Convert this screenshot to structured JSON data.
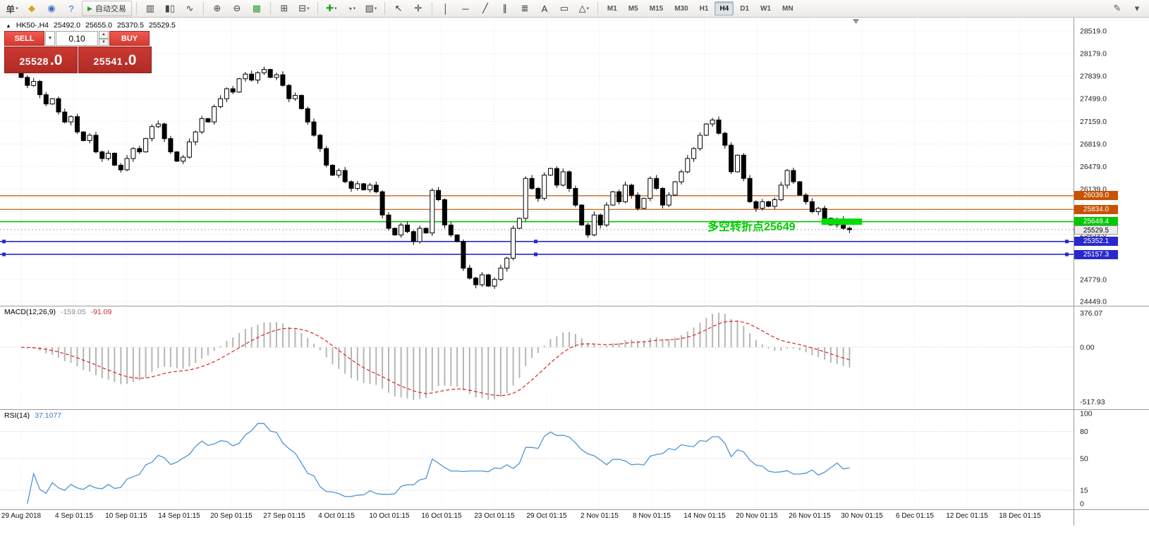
{
  "toolbar": {
    "items": [
      {
        "type": "icon",
        "name": "new-order-button",
        "glyph": "单",
        "color": "#111",
        "dropdown": true
      },
      {
        "type": "icon",
        "name": "chart-profiles-icon",
        "glyph": "◆",
        "color": "#d9a41e"
      },
      {
        "type": "icon",
        "name": "market-watch-icon",
        "glyph": "◉",
        "color": "#3b6fc4"
      },
      {
        "type": "icon",
        "name": "help-guide-icon",
        "glyph": "?",
        "color": "#3b6fc4"
      },
      {
        "type": "button",
        "name": "auto-trading-button",
        "glyph": "▶",
        "glyph_color": "#1fa51f",
        "label": "自动交易"
      },
      {
        "type": "sep"
      },
      {
        "type": "icon",
        "name": "bar-chart-type-icon",
        "glyph": "▥",
        "color": "#444"
      },
      {
        "type": "icon",
        "name": "candlestick-type-icon",
        "glyph": "▮▯",
        "color": "#444"
      },
      {
        "type": "icon",
        "name": "line-chart-type-icon",
        "glyph": "∿",
        "color": "#444"
      },
      {
        "type": "sep"
      },
      {
        "type": "icon",
        "name": "zoom-in-icon",
        "glyph": "⊕",
        "color": "#444"
      },
      {
        "type": "icon",
        "name": "zoom-out-icon",
        "glyph": "⊖",
        "color": "#444"
      },
      {
        "type": "icon",
        "name": "market-depth-icon",
        "glyph": "▦",
        "color": "#2f9e2f"
      },
      {
        "type": "sep"
      },
      {
        "type": "icon",
        "name": "tile-windows-icon",
        "glyph": "⊞",
        "color": "#444"
      },
      {
        "type": "icon",
        "name": "new-chart-icon",
        "glyph": "⊟",
        "color": "#444",
        "dropdown": true
      },
      {
        "type": "sep"
      },
      {
        "type": "icon",
        "name": "indicators-add-icon",
        "glyph": "✚",
        "color": "#1fa51f",
        "dropdown": true
      },
      {
        "type": "icon",
        "name": "periods-clock-icon",
        "glyph": "◔",
        "color": "#444",
        "dropdown": true
      },
      {
        "type": "icon",
        "name": "templates-icon",
        "glyph": "▧",
        "color": "#444",
        "dropdown": true
      },
      {
        "type": "sep"
      },
      {
        "type": "icon",
        "name": "cursor-icon",
        "glyph": "↖",
        "color": "#333"
      },
      {
        "type": "icon",
        "name": "crosshair-icon",
        "glyph": "✛",
        "color": "#333"
      },
      {
        "type": "sep"
      },
      {
        "type": "icon",
        "name": "vertical-line-icon",
        "glyph": "│",
        "color": "#333"
      },
      {
        "type": "icon",
        "name": "horizontal-line-icon",
        "glyph": "─",
        "color": "#333"
      },
      {
        "type": "icon",
        "name": "trendline-icon",
        "glyph": "╱",
        "color": "#333"
      },
      {
        "type": "icon",
        "name": "channel-icon",
        "glyph": "∥",
        "color": "#333"
      },
      {
        "type": "icon",
        "name": "fibonacci-icon",
        "glyph": "≣",
        "color": "#333"
      },
      {
        "type": "icon",
        "name": "text-icon",
        "glyph": "A",
        "color": "#333"
      },
      {
        "type": "icon",
        "name": "label-icon",
        "glyph": "▭",
        "color": "#333"
      },
      {
        "type": "icon",
        "name": "shapes-icon",
        "glyph": "△",
        "color": "#333",
        "dropdown": true
      },
      {
        "type": "sep"
      }
    ],
    "timeframes": [
      "M1",
      "M5",
      "M15",
      "M30",
      "H1",
      "H4",
      "D1",
      "W1",
      "MN"
    ],
    "active_timeframe": "H4",
    "right_icons": [
      {
        "name": "edit-icon",
        "glyph": "✎",
        "color": "#555"
      },
      {
        "name": "chevron-down-icon",
        "glyph": "▾",
        "color": "#555"
      }
    ]
  },
  "trade_panel": {
    "sell_label": "SELL",
    "buy_label": "BUY",
    "volume": "0.10",
    "dropdown_glyph": "▼",
    "spin_up": "▲",
    "spin_down": "▼",
    "sell_price_main": "25528",
    "sell_price_big": ".0",
    "buy_price_main": "25541",
    "buy_price_big": ".0"
  },
  "chart_header": {
    "collapse_icon": "▲",
    "symbol_period": "HK50-,H4",
    "open": "25492.0",
    "high": "25655.0",
    "low": "25370.5",
    "close": "25529.5"
  },
  "annotation": {
    "text": "多空转折点25649",
    "color": "#00cc00"
  },
  "macd_panel": {
    "label": "MACD(12,26,9)",
    "value_main": "-159.05",
    "value_signal": "-91.09",
    "axis_top": "376.07",
    "axis_zero": "0.00",
    "axis_bottom": "-517.93"
  },
  "rsi_panel": {
    "label": "RSI(14)",
    "value": "37.1077",
    "axis": [
      100,
      80,
      50,
      15,
      0
    ],
    "level_lines": [
      80,
      50,
      15
    ]
  },
  "chart_data": {
    "type": "candlestick",
    "symbol": "HK50-",
    "timeframe": "H4",
    "title": "HK50-,H4 25492.0 25655.0 25370.5 25529.5",
    "y_range": [
      24385,
      28720
    ],
    "y_axis_ticks": [
      28519.0,
      28179.0,
      27839.0,
      27499.0,
      27159.0,
      26819.0,
      26479.0,
      26139.0,
      25799.0,
      25459.0,
      25119.0,
      24779.0,
      24449.0
    ],
    "x_axis_labels": [
      "29 Aug 2018",
      "4 Sep 01:15",
      "10 Sep 01:15",
      "14 Sep 01:15",
      "20 Sep 01:15",
      "27 Sep 01:15",
      "4 Oct 01:15",
      "10 Oct 01:15",
      "16 Oct 01:15",
      "23 Oct 01:15",
      "29 Oct 01:15",
      "2 Nov 01:15",
      "8 Nov 01:15",
      "14 Nov 01:15",
      "20 Nov 01:15",
      "26 Nov 01:15",
      "30 Nov 01:15",
      "6 Dec 01:15",
      "12 Dec 01:15",
      "18 Dec 01:15"
    ],
    "closes": [
      27820,
      27700,
      27760,
      27560,
      27420,
      27500,
      27300,
      27150,
      27230,
      27000,
      26870,
      26950,
      26700,
      26600,
      26680,
      26500,
      26430,
      26600,
      26750,
      26700,
      26900,
      27080,
      27120,
      26900,
      26700,
      26560,
      26620,
      26850,
      27000,
      27200,
      27150,
      27380,
      27500,
      27650,
      27600,
      27800,
      27870,
      27780,
      27890,
      27940,
      27820,
      27860,
      27700,
      27500,
      27550,
      27350,
      27150,
      26950,
      26750,
      26500,
      26350,
      26420,
      26250,
      26150,
      26220,
      26130,
      26200,
      26100,
      25750,
      25550,
      25450,
      25600,
      25500,
      25350,
      25550,
      25480,
      26120,
      25980,
      25600,
      25450,
      25350,
      24950,
      24800,
      24700,
      24850,
      24680,
      24780,
      24950,
      25100,
      25550,
      25700,
      26300,
      26150,
      26000,
      26350,
      26450,
      26200,
      26400,
      26150,
      25900,
      25600,
      25450,
      25750,
      25600,
      25900,
      26100,
      25950,
      26200,
      26050,
      25850,
      26000,
      26300,
      26150,
      25900,
      26050,
      26250,
      26400,
      26600,
      26750,
      26950,
      27120,
      27180,
      26980,
      26800,
      26400,
      26650,
      26300,
      25950,
      25850,
      25950,
      25880,
      25980,
      26200,
      26420,
      26250,
      26050,
      25950,
      25800,
      25850,
      25700,
      25600,
      25680,
      25550,
      25529.5
    ],
    "levels": [
      {
        "price": 26039.0,
        "label": "26039.0",
        "color": "#c85200",
        "width": 1.2,
        "style": "solid",
        "tag_fg": "#ffffff"
      },
      {
        "price": 25834.0,
        "label": "25834.0",
        "color": "#c85200",
        "width": 1.2,
        "style": "solid",
        "tag_fg": "#ffffff"
      },
      {
        "price": 25649.4,
        "label": "25649.4",
        "color": "#00c800",
        "width": 1.6,
        "style": "solid",
        "tag_fg": "#ffffff"
      },
      {
        "price": 25529.5,
        "label": "25529.5",
        "color": "#a8a8a8",
        "width": 1,
        "style": "dot",
        "tag_bg": "#ededed",
        "tag_fg": "#000000",
        "tag_border": "#999999"
      },
      {
        "price": 25352.1,
        "label": "25352.1",
        "color": "#2828cc",
        "width": 1.6,
        "style": "solid",
        "tag_fg": "#ffffff",
        "handles": true
      },
      {
        "price": 25157.3,
        "label": "25157.3",
        "color": "#2828cc",
        "width": 1.6,
        "style": "solid",
        "tag_fg": "#ffffff",
        "handles": true
      }
    ],
    "highlight_bar": {
      "price": 25649.4,
      "start_index": 128.5,
      "end_index": 135,
      "height": 9,
      "color": "#00dd00"
    },
    "macd": {
      "params": [
        12,
        26,
        9
      ]
    },
    "rsi": {
      "params": [
        14
      ]
    }
  }
}
